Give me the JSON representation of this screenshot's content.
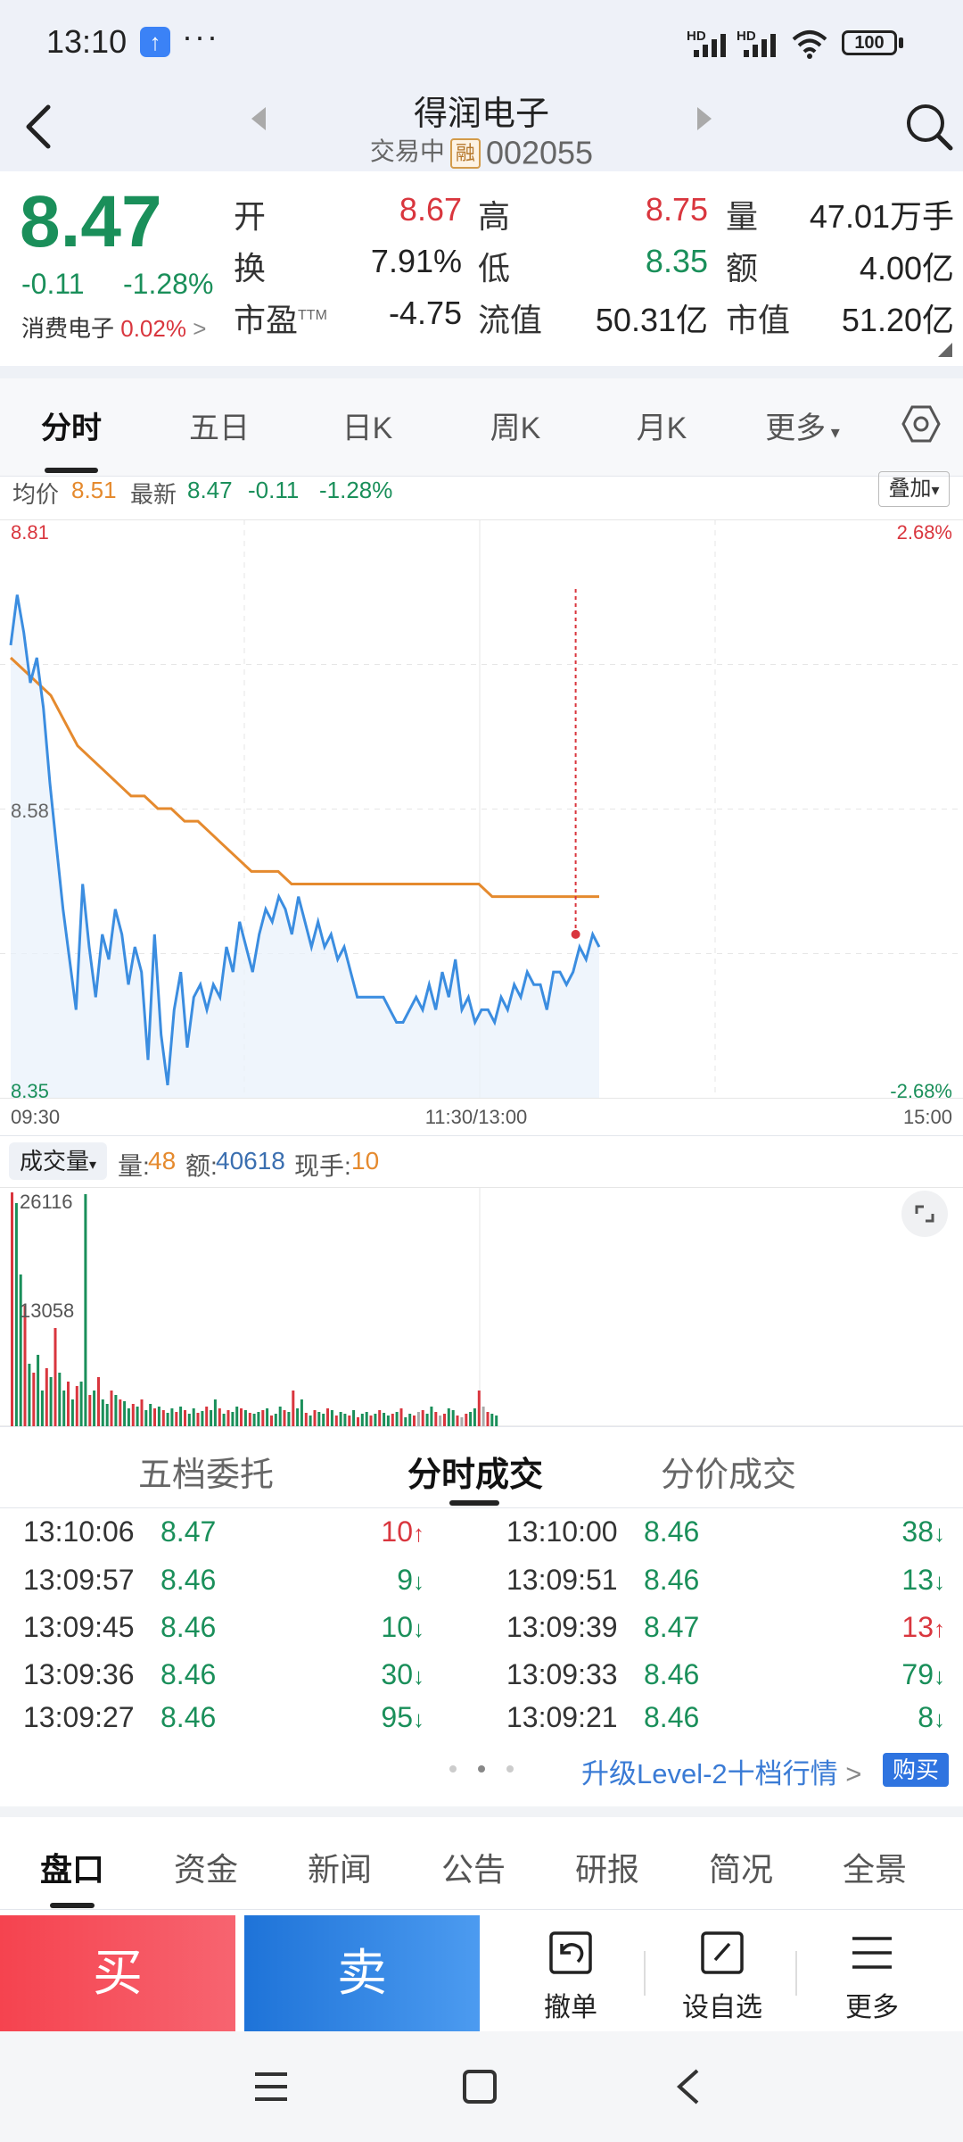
{
  "status_bar": {
    "time": "13:10",
    "more": "···",
    "hd1": "HD",
    "hd2": "HD",
    "battery": "100"
  },
  "header": {
    "title": "得润电子",
    "status": "交易中",
    "margin_badge": "融",
    "code": "002055"
  },
  "quote": {
    "price": "8.47",
    "change": "-0.11",
    "change_pct": "-1.28%",
    "sector_name": "消费电子",
    "sector_pct": "0.02%",
    "fields": [
      {
        "label": "开",
        "value": "8.67",
        "color": "red"
      },
      {
        "label": "高",
        "value": "8.75",
        "color": "red"
      },
      {
        "label": "量",
        "value": "47.01万手",
        "color": "dark"
      },
      {
        "label": "换",
        "value": "7.91%",
        "color": "dark"
      },
      {
        "label": "低",
        "value": "8.35",
        "color": "green"
      },
      {
        "label": "额",
        "value": "4.00亿",
        "color": "dark"
      },
      {
        "label": "市盈",
        "label_sup": "TTM",
        "value": "-4.75",
        "color": "dark"
      },
      {
        "label": "流值",
        "value": "50.31亿",
        "color": "dark"
      },
      {
        "label": "市值",
        "value": "51.20亿",
        "color": "dark"
      }
    ]
  },
  "tabs": [
    {
      "label": "分时"
    },
    {
      "label": "五日"
    },
    {
      "label": "日K"
    },
    {
      "label": "周K"
    },
    {
      "label": "月K"
    },
    {
      "label": "更多"
    }
  ],
  "info_row": {
    "avg_label": "均价",
    "avg_value": "8.51",
    "latest_label": "最新",
    "latest_value": "8.47",
    "change": "-0.11",
    "change_pct": "-1.28%",
    "overlay_label": "叠加"
  },
  "price_chart": {
    "y_max": "8.81",
    "y_mid": "8.58",
    "y_min": "8.35",
    "pct_max": "2.68%",
    "pct_min": "-2.68%",
    "time_start": "09:30",
    "time_mid": "11:30/13:00",
    "time_end": "15:00",
    "marker": "B",
    "price_series": [
      8.71,
      8.75,
      8.72,
      8.68,
      8.7,
      8.66,
      8.6,
      8.55,
      8.5,
      8.46,
      8.42,
      8.52,
      8.47,
      8.43,
      8.48,
      8.46,
      8.5,
      8.48,
      8.44,
      8.47,
      8.45,
      8.38,
      8.48,
      8.4,
      8.36,
      8.42,
      8.45,
      8.39,
      8.43,
      8.44,
      8.42,
      8.44,
      8.43,
      8.47,
      8.45,
      8.49,
      8.47,
      8.45,
      8.48,
      8.5,
      8.49,
      8.51,
      8.5,
      8.48,
      8.51,
      8.49,
      8.47,
      8.49,
      8.47,
      8.48,
      8.46,
      8.47,
      8.45,
      8.43,
      8.43,
      8.43,
      8.43,
      8.43,
      8.42,
      8.41,
      8.41,
      8.42,
      8.43,
      8.42,
      8.44,
      8.42,
      8.45,
      8.43,
      8.46,
      8.42,
      8.43,
      8.41,
      8.42,
      8.42,
      8.41,
      8.43,
      8.42,
      8.44,
      8.43,
      8.45,
      8.44,
      8.44,
      8.42,
      8.45,
      8.45,
      8.44,
      8.45,
      8.47,
      8.46,
      8.48,
      8.47
    ],
    "avg_series": [
      8.7,
      8.69,
      8.68,
      8.67,
      8.65,
      8.63,
      8.62,
      8.61,
      8.6,
      8.59,
      8.59,
      8.58,
      8.58,
      8.57,
      8.57,
      8.56,
      8.55,
      8.54,
      8.53,
      8.53,
      8.53,
      8.52,
      8.52,
      8.52,
      8.52,
      8.52,
      8.52,
      8.52,
      8.52,
      8.52,
      8.52,
      8.52,
      8.52,
      8.52,
      8.52,
      8.52,
      8.51,
      8.51,
      8.51,
      8.51,
      8.51,
      8.51,
      8.51,
      8.51,
      8.51
    ]
  },
  "volume": {
    "selector": "成交量",
    "vol_label": "量:",
    "vol_value": "48",
    "amount_label": "额:",
    "amount_value": "40618",
    "current_label": "现手:",
    "current_value": "10",
    "max_label": "26116",
    "mid_label": "13058"
  },
  "trade_tabs": [
    {
      "label": "五档委托"
    },
    {
      "label": "分时成交"
    },
    {
      "label": "分价成交"
    }
  ],
  "trades": [
    {
      "time": "13:10:06",
      "price": "8.47",
      "price_color": "green",
      "vol": "10",
      "dir": "up"
    },
    {
      "time": "13:10:00",
      "price": "8.46",
      "price_color": "green",
      "vol": "38",
      "dir": "down"
    },
    {
      "time": "13:09:57",
      "price": "8.46",
      "price_color": "green",
      "vol": "9",
      "dir": "down"
    },
    {
      "time": "13:09:51",
      "price": "8.46",
      "price_color": "green",
      "vol": "13",
      "dir": "down"
    },
    {
      "time": "13:09:45",
      "price": "8.46",
      "price_color": "green",
      "vol": "10",
      "dir": "down"
    },
    {
      "time": "13:09:39",
      "price": "8.47",
      "price_color": "green",
      "vol": "13",
      "dir": "up"
    },
    {
      "time": "13:09:36",
      "price": "8.46",
      "price_color": "green",
      "vol": "30",
      "dir": "down"
    },
    {
      "time": "13:09:33",
      "price": "8.46",
      "price_color": "green",
      "vol": "79",
      "dir": "down"
    },
    {
      "time": "13:09:27",
      "price": "8.46",
      "price_color": "green",
      "vol": "95",
      "dir": "down"
    },
    {
      "time": "13:09:21",
      "price": "8.46",
      "price_color": "green",
      "vol": "8",
      "dir": "down"
    }
  ],
  "upgrade": {
    "text": "升级Level-2十档行情",
    "badge": "购买"
  },
  "bottom_tabs": [
    {
      "label": "盘口"
    },
    {
      "label": "资金"
    },
    {
      "label": "新闻"
    },
    {
      "label": "公告"
    },
    {
      "label": "研报"
    },
    {
      "label": "简况"
    },
    {
      "label": "全景"
    }
  ],
  "actions": {
    "buy": "买",
    "sell": "卖",
    "cancel": "撤单",
    "watchlist": "设自选",
    "more": "更多"
  },
  "colors": {
    "red": "#d9363e",
    "green": "#1a8f5a",
    "orange": "#e58a2e",
    "blue": "#3b8de0"
  }
}
